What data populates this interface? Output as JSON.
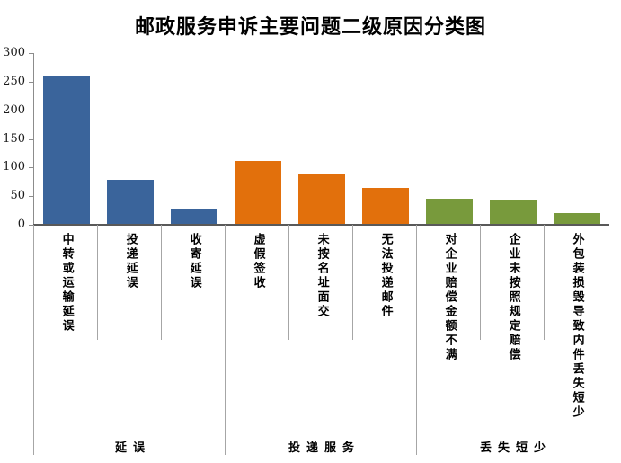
{
  "chart_data": {
    "type": "bar",
    "title": "邮政服务申诉主要问题二级原因分类图",
    "xlabel": "",
    "ylabel": "",
    "ylim": [
      0,
      300
    ],
    "yticks": [
      0,
      50,
      100,
      150,
      200,
      250,
      300
    ],
    "grid": false,
    "legend": "none",
    "groups": [
      {
        "label": "延误",
        "color": "#3A649B",
        "categories": [
          "中转或运输延误",
          "投递延误",
          "收寄延误"
        ],
        "values": [
          260,
          78,
          28
        ]
      },
      {
        "label": "投递服务",
        "color": "#E2700C",
        "categories": [
          "虚假签收",
          "未按名址面交",
          "无法投递邮件"
        ],
        "values": [
          112,
          88,
          65
        ]
      },
      {
        "label": "丢失短少",
        "color": "#789A3C",
        "categories": [
          "对企业赔偿金额不满",
          "企业未按照规定赔偿",
          "外包装损毁导致内件丢失短少"
        ],
        "values": [
          45,
          42,
          21
        ]
      }
    ],
    "axis_color": "#8C8C8C",
    "x_axis_color": "#595959",
    "separator_color": "#A6A6A6",
    "text_color": "#000000"
  }
}
